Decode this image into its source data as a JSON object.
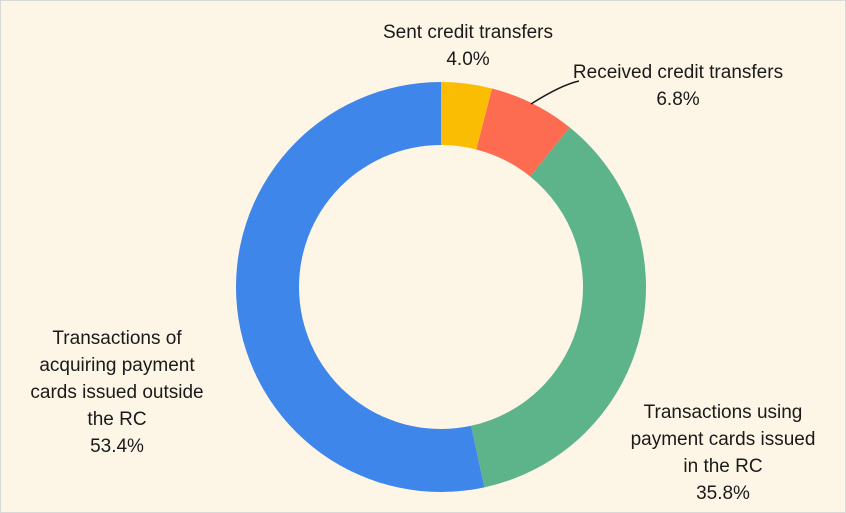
{
  "chart_data": {
    "type": "donut",
    "categories": [
      "Sent credit transfers",
      "Received credit transfers",
      "Transactions using payment cards issued in the RC",
      "Transactions of acquiring payment cards issued outside the RC"
    ],
    "values": [
      4.0,
      6.8,
      35.8,
      53.4
    ],
    "value_labels": [
      "4.0%",
      "6.8%",
      "35.8%",
      "53.4%"
    ],
    "colors": [
      "#fbbc04",
      "#fd6c51",
      "#5db38a",
      "#3f86ea"
    ]
  }
}
